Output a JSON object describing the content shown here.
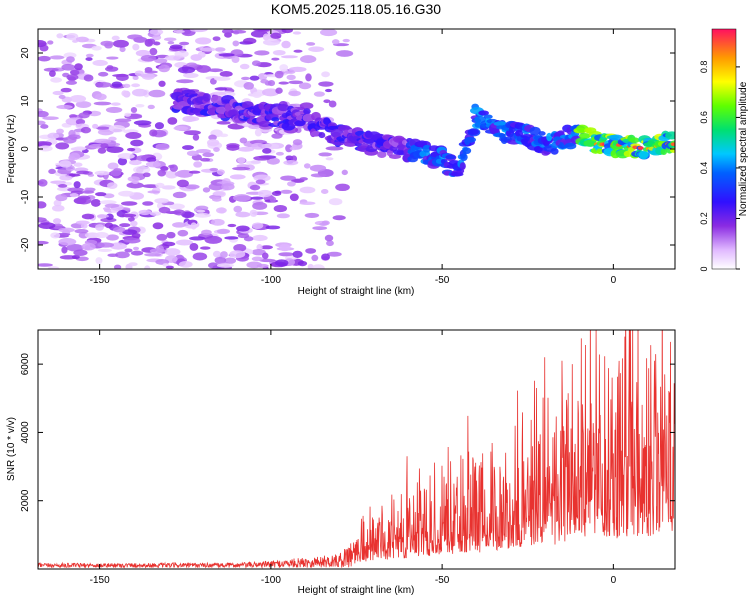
{
  "title": "KOM5.2025.118.05.16.G30",
  "chart_data": [
    {
      "type": "heatmap",
      "xlabel": "Height of straight line (km)",
      "ylabel": "Frequency (Hz)",
      "xlim": [
        -168,
        18
      ],
      "ylim": [
        -25,
        25
      ],
      "xticks": [
        -150,
        -100,
        -50,
        0
      ],
      "yticks": [
        -20,
        -10,
        0,
        10,
        20
      ],
      "colorbar": {
        "label": "Normalized spectral amplitude",
        "range": [
          0,
          0.95
        ],
        "ticks": [
          0,
          0.2,
          0.4,
          0.6,
          0.8
        ]
      },
      "ridge": {
        "description_points_km_hz": [
          [
            -125,
            10
          ],
          [
            -110,
            8
          ],
          [
            -100,
            7
          ],
          [
            -90,
            6
          ],
          [
            -80,
            3
          ],
          [
            -70,
            1
          ],
          [
            -60,
            0
          ],
          [
            -50,
            -2
          ],
          [
            -45,
            -5
          ],
          [
            -40,
            7
          ],
          [
            -35,
            4
          ],
          [
            -25,
            3
          ],
          [
            -20,
            1
          ],
          [
            -10,
            3
          ],
          [
            -5,
            1
          ],
          [
            0,
            1
          ],
          [
            10,
            0
          ],
          [
            15,
            1
          ]
        ],
        "noise_region_km": [
          -168,
          -95
        ]
      }
    },
    {
      "type": "line",
      "xlabel": "Height of straight line (km)",
      "ylabel": "SNR (10 * v/v)",
      "xlim": [
        -168,
        18
      ],
      "ylim": [
        0,
        7000
      ],
      "xticks": [
        -150,
        -100,
        -50,
        0
      ],
      "yticks": [
        2000,
        4000,
        6000
      ],
      "color": "#e8322f",
      "envelope_km_snr": [
        [
          -168,
          130
        ],
        [
          -110,
          140
        ],
        [
          -100,
          200
        ],
        [
          -90,
          300
        ],
        [
          -80,
          400
        ],
        [
          -75,
          1000
        ],
        [
          -70,
          1200
        ],
        [
          -60,
          1600
        ],
        [
          -50,
          2200
        ],
        [
          -45,
          2200
        ],
        [
          -40,
          2200
        ],
        [
          -35,
          2600
        ],
        [
          -30,
          3000
        ],
        [
          -20,
          3800
        ],
        [
          -15,
          3000
        ],
        [
          -10,
          4200
        ],
        [
          -5,
          5200
        ],
        [
          0,
          4200
        ],
        [
          5,
          4800
        ],
        [
          10,
          4800
        ],
        [
          18,
          5300
        ]
      ],
      "peaks_km_snr": [
        [
          -20,
          6200
        ],
        [
          -15,
          6100
        ],
        [
          -12,
          6000
        ],
        [
          -5,
          7000
        ],
        [
          5,
          6300
        ],
        [
          12,
          6100
        ]
      ]
    }
  ]
}
